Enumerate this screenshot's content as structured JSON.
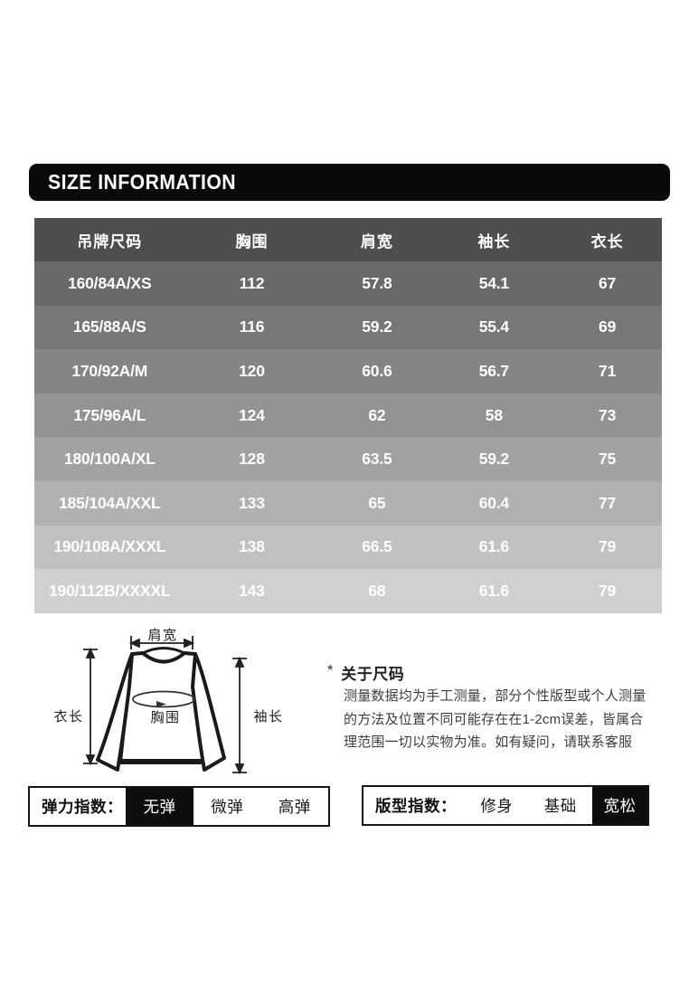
{
  "header": {
    "title": "SIZE INFORMATION"
  },
  "size_table": {
    "columns": [
      "吊牌尺码",
      "胸围",
      "肩宽",
      "袖长",
      "衣长"
    ],
    "rows": [
      [
        "160/84A/XS",
        "112",
        "57.8",
        "54.1",
        "67"
      ],
      [
        "165/88A/S",
        "116",
        "59.2",
        "55.4",
        "69"
      ],
      [
        "170/92A/M",
        "120",
        "60.6",
        "56.7",
        "71"
      ],
      [
        "175/96A/L",
        "124",
        "62",
        "58",
        "73"
      ],
      [
        "180/100A/XL",
        "128",
        "63.5",
        "59.2",
        "75"
      ],
      [
        "185/104A/XXL",
        "133",
        "65",
        "60.4",
        "77"
      ],
      [
        "190/108A/XXXL",
        "138",
        "66.5",
        "61.6",
        "79"
      ],
      [
        "190/112B/XXXXL",
        "143",
        "68",
        "61.6",
        "79"
      ]
    ],
    "header_bg": "#4e4e51",
    "row_colors": [
      "#69696c",
      "#77777a",
      "#858588",
      "#939396",
      "#a2a2a4",
      "#b1b1b3",
      "#c1c1c3",
      "#d0d0d2"
    ],
    "text_color": "#ffffff"
  },
  "diagram": {
    "labels": {
      "shoulder": "肩宽",
      "length": "衣长",
      "chest": "胸围",
      "sleeve": "袖长"
    }
  },
  "note": {
    "marker": "*",
    "title": "关于尺码",
    "body": "测量数据均为手工测量，部分个性版型或个人测量\n的方法及位置不同可能存在在1-2cm误差，皆属合\n理范围一切以实物为准。如有疑问，请联系客服"
  },
  "elasticity": {
    "label": "弹力指数：",
    "options": [
      "无弹",
      "微弹",
      "高弹"
    ],
    "selected_index": 0,
    "selected": "无弹"
  },
  "fit": {
    "label": "版型指数：",
    "options": [
      "修身",
      "基础",
      "宽松"
    ],
    "selected_index": 2,
    "selected": "宽松"
  },
  "colors": {
    "accent_black": "#0d0d0d",
    "selected_text": "#ffffff"
  }
}
